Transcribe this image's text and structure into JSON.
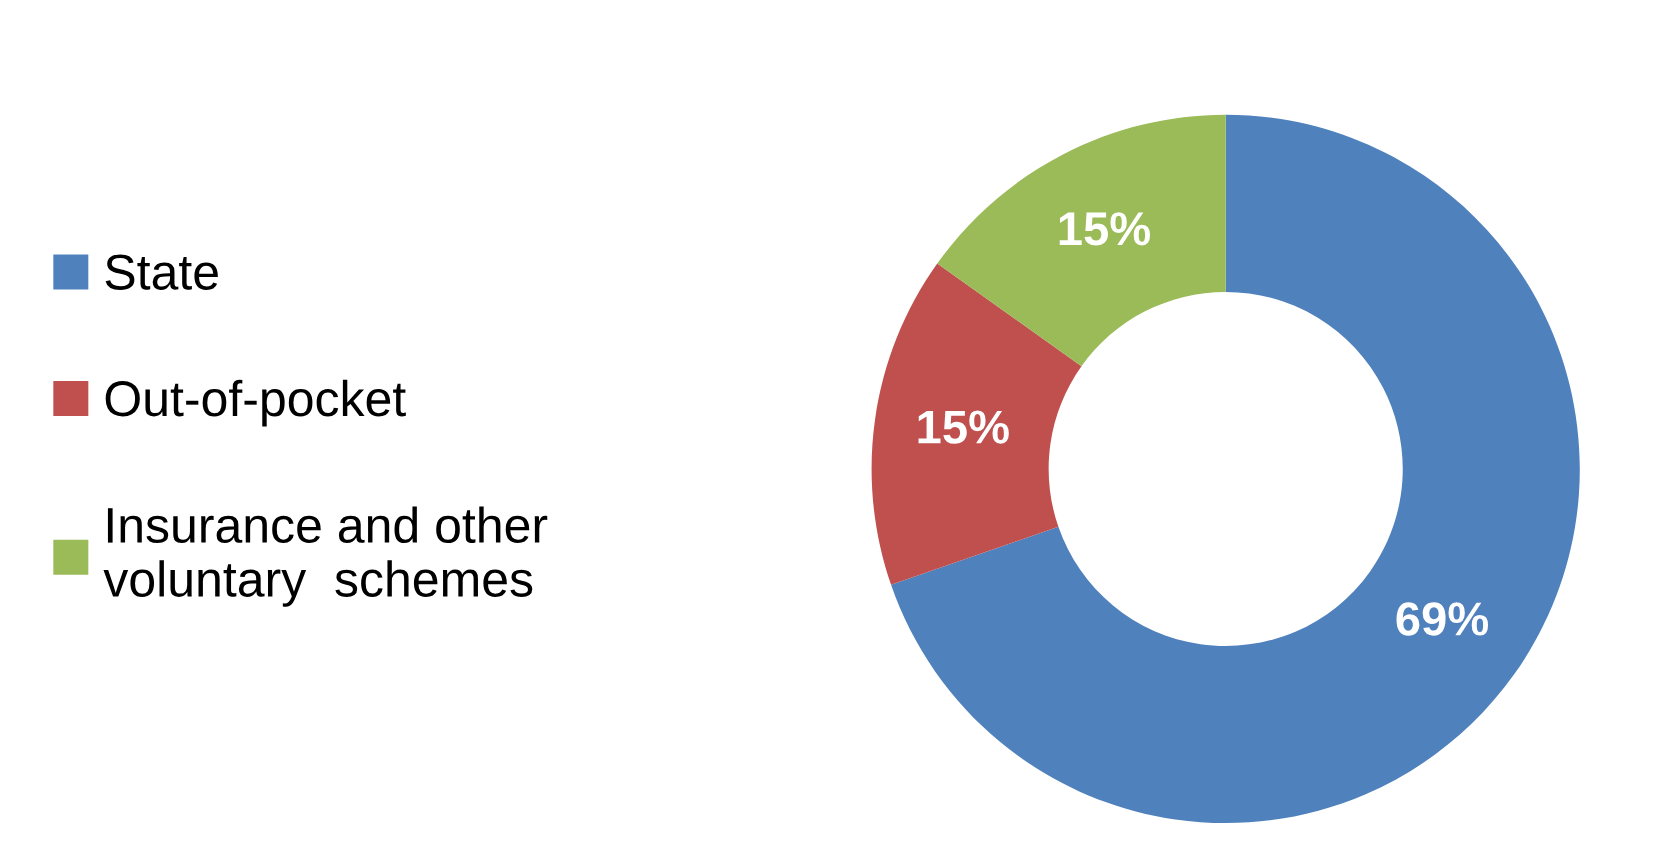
{
  "chart_data": {
    "type": "donut",
    "categories": [
      "State",
      "Out-of-pocket",
      "Insurance and other\nvoluntary  schemes"
    ],
    "values": [
      69,
      15,
      15
    ],
    "colors": [
      "#4f81bd",
      "#c0504d",
      "#9bbb59"
    ],
    "value_labels": [
      "69%",
      "15%",
      "15%"
    ],
    "legend": "left"
  }
}
